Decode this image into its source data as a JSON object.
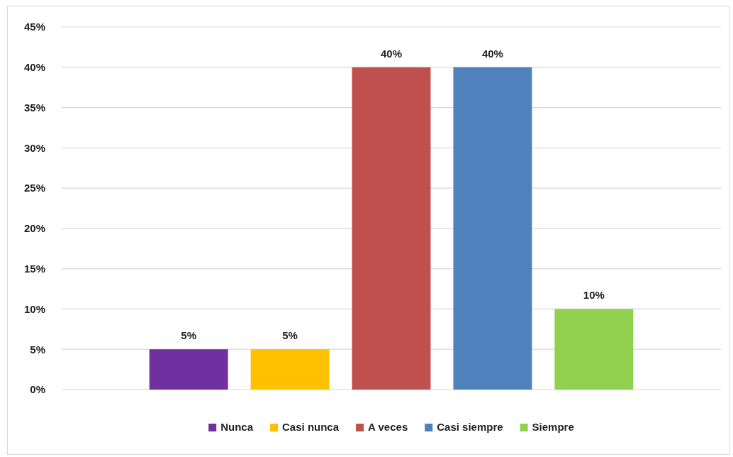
{
  "chart_data": {
    "type": "bar",
    "categories": [
      null
    ],
    "series": [
      {
        "name": "Nunca",
        "color": "#7030a0",
        "values": [
          5
        ],
        "value_labels": [
          "5%"
        ]
      },
      {
        "name": "Casi nunca",
        "color": "#ffc000",
        "values": [
          5
        ],
        "value_labels": [
          "5%"
        ]
      },
      {
        "name": "A veces",
        "color": "#c0504d",
        "values": [
          40
        ],
        "value_labels": [
          "40%"
        ]
      },
      {
        "name": "Casi siempre",
        "color": "#4f81bd",
        "values": [
          40
        ],
        "value_labels": [
          "40%"
        ]
      },
      {
        "name": "Siempre",
        "color": "#92d050",
        "values": [
          10
        ],
        "value_labels": [
          "10%"
        ]
      }
    ],
    "ylim": [
      0,
      45
    ],
    "yticks": [
      {
        "value": 0,
        "label": "0%"
      },
      {
        "value": 5,
        "label": "5%"
      },
      {
        "value": 10,
        "label": "10%"
      },
      {
        "value": 15,
        "label": "15%"
      },
      {
        "value": 20,
        "label": "20%"
      },
      {
        "value": 25,
        "label": "25%"
      },
      {
        "value": 30,
        "label": "30%"
      },
      {
        "value": 35,
        "label": "35%"
      },
      {
        "value": 40,
        "label": "40%"
      },
      {
        "value": 45,
        "label": "45%"
      }
    ],
    "grid": "y",
    "legend": "bottom"
  }
}
